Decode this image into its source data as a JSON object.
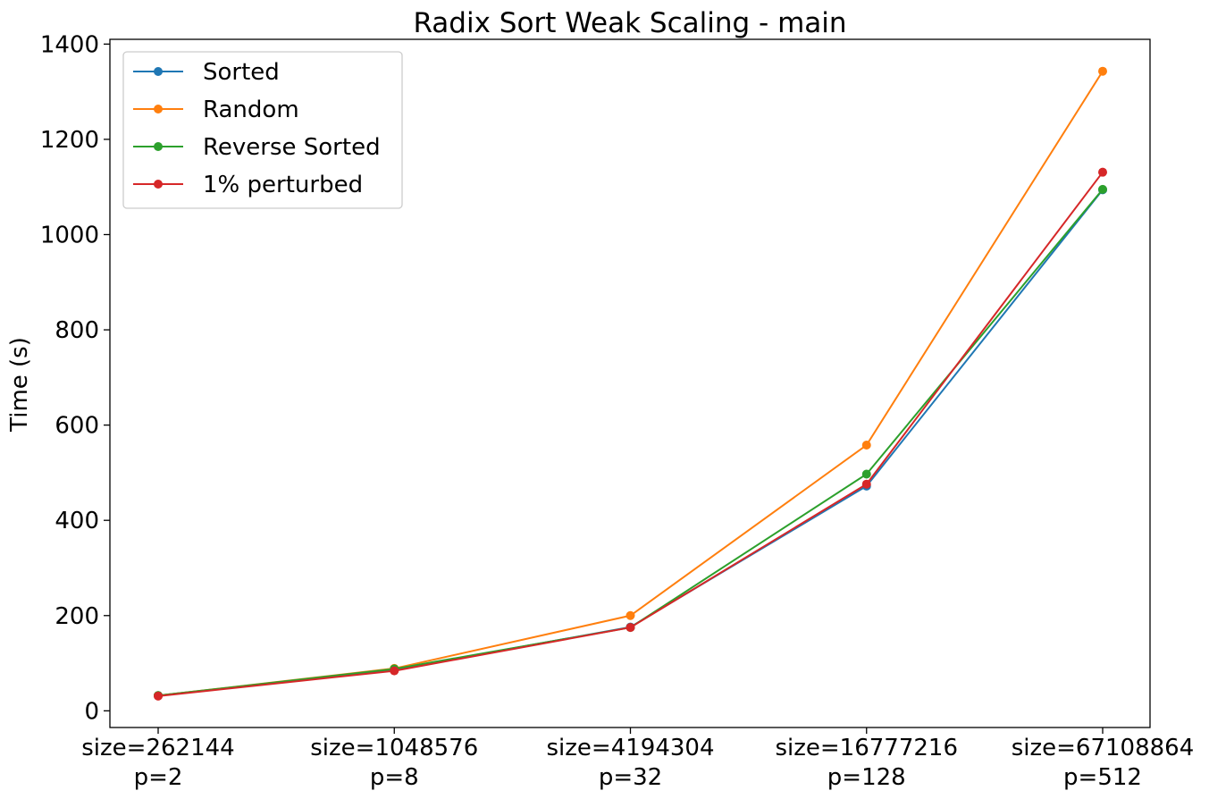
{
  "chart_data": {
    "type": "line",
    "title": "Radix Sort Weak Scaling - main",
    "xlabel": "",
    "ylabel": "Time (s)",
    "categories": [
      [
        "size=262144",
        "p=2"
      ],
      [
        "size=1048576",
        "p=8"
      ],
      [
        "size=4194304",
        "p=32"
      ],
      [
        "size=16777216",
        "p=128"
      ],
      [
        "size=67108864",
        "p=512"
      ]
    ],
    "ylim": [
      -35,
      1410
    ],
    "yticks": [
      0,
      200,
      400,
      600,
      800,
      1000,
      1200,
      1400
    ],
    "grid": false,
    "legend": "top-left",
    "series": [
      {
        "name": "Sorted",
        "color": "#1f77b4",
        "values": [
          32,
          86,
          176,
          472,
          1094
        ]
      },
      {
        "name": "Random",
        "color": "#ff7f0e",
        "values": [
          32,
          89,
          200,
          558,
          1343
        ]
      },
      {
        "name": "Reverse Sorted",
        "color": "#2ca02c",
        "values": [
          32,
          88,
          175,
          497,
          1095
        ]
      },
      {
        "name": "1% perturbed",
        "color": "#d62728",
        "values": [
          31,
          84,
          175,
          476,
          1131
        ]
      }
    ]
  }
}
